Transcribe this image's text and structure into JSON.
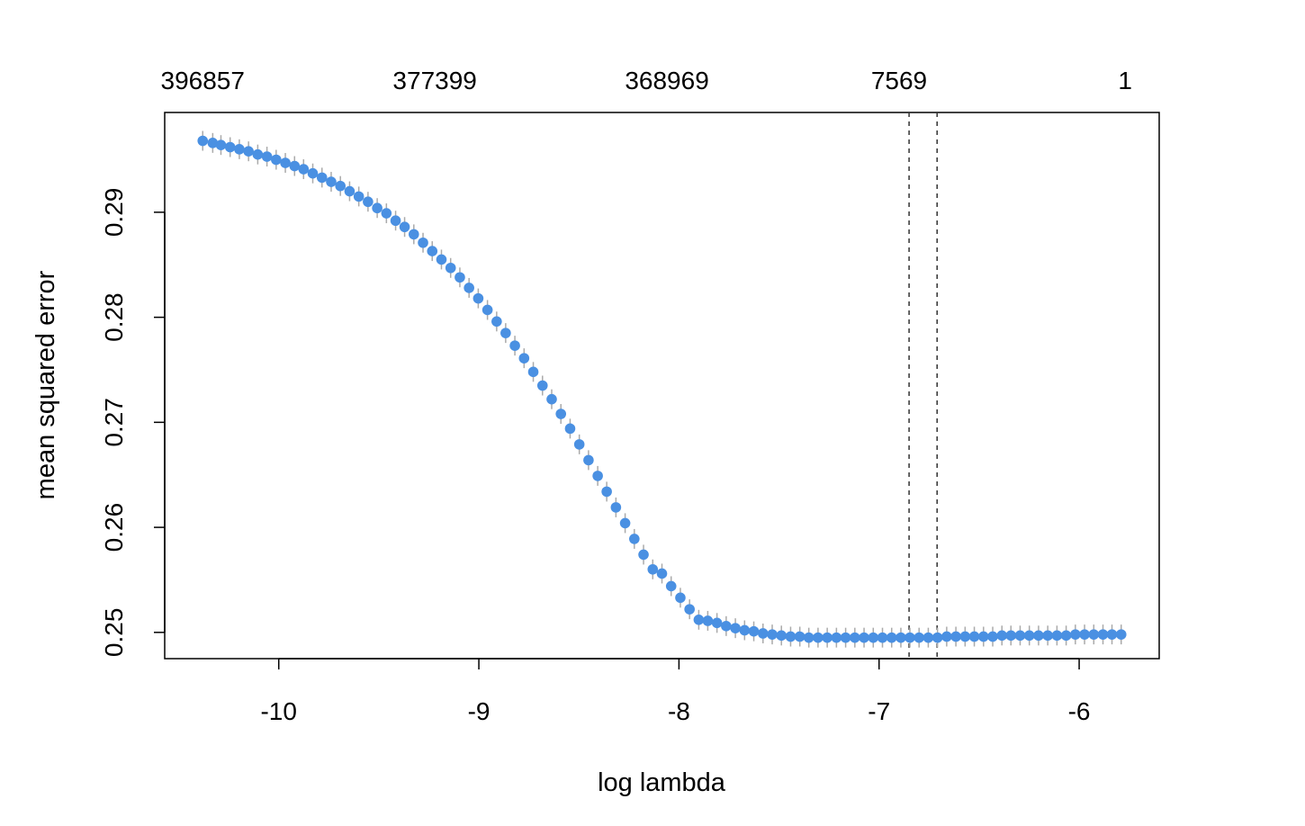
{
  "chart_data": {
    "type": "scatter",
    "title": "",
    "xlabel": "log lambda",
    "ylabel": "mean squared error",
    "xlim": [
      -10.57,
      -5.6
    ],
    "ylim": [
      0.2475,
      0.2995
    ],
    "x_ticks": [
      -10,
      -9,
      -8,
      -7,
      -6
    ],
    "x_tick_labels": [
      "-10",
      "-9",
      "-8",
      "-7",
      "-6"
    ],
    "y_ticks": [
      0.25,
      0.26,
      0.27,
      0.28,
      0.29
    ],
    "y_tick_labels": [
      "0.25",
      "0.26",
      "0.27",
      "0.28",
      "0.29"
    ],
    "top_axis": {
      "x_ticks": [
        -10.38,
        -9.22,
        -8.06,
        -6.9,
        -5.77
      ],
      "labels": [
        "396857",
        "377399",
        "368969",
        "7569",
        "1"
      ]
    },
    "vlines": [
      -6.85,
      -6.71
    ],
    "point_color": "#4a90e2",
    "errorbar_color": "#aaaaaa",
    "series": [
      {
        "x": [
          -10.38,
          -10.33,
          -10.289,
          -10.243,
          -10.197,
          -10.151,
          -10.105,
          -10.059,
          -10.013,
          -9.967,
          -9.921,
          -9.876,
          -9.83,
          -9.784,
          -9.738,
          -9.692,
          -9.646,
          -9.6,
          -9.554,
          -9.508,
          -9.462,
          -9.416,
          -9.371,
          -9.325,
          -9.279,
          -9.233,
          -9.187,
          -9.141,
          -9.095,
          -9.049,
          -9.003,
          -8.957,
          -8.911,
          -8.866,
          -8.82,
          -8.774,
          -8.728,
          -8.682,
          -8.636,
          -8.59,
          -8.544,
          -8.498,
          -8.452,
          -8.406,
          -8.361,
          -8.315,
          -8.269,
          -8.223,
          -8.177,
          -8.131,
          -8.085,
          -8.039,
          -7.993,
          -7.947,
          -7.901,
          -7.856,
          -7.81,
          -7.764,
          -7.718,
          -7.672,
          -7.626,
          -7.58,
          -7.534,
          -7.488,
          -7.442,
          -7.396,
          -7.351,
          -7.305,
          -7.259,
          -7.213,
          -7.167,
          -7.121,
          -7.075,
          -7.029,
          -6.983,
          -6.937,
          -6.891,
          -6.846,
          -6.8,
          -6.754,
          -6.708,
          -6.662,
          -6.616,
          -6.57,
          -6.524,
          -6.478,
          -6.432,
          -6.386,
          -6.341,
          -6.295,
          -6.249,
          -6.203,
          -6.157,
          -6.111,
          -6.065,
          -6.019,
          -5.973,
          -5.927,
          -5.881,
          -5.836,
          -5.79
        ],
        "y": [
          0.2968,
          0.2966,
          0.2964,
          0.2962,
          0.296,
          0.2958,
          0.2955,
          0.2953,
          0.295,
          0.2947,
          0.2944,
          0.2941,
          0.2937,
          0.2933,
          0.2929,
          0.2925,
          0.292,
          0.2915,
          0.291,
          0.2904,
          0.2899,
          0.2892,
          0.2886,
          0.2879,
          0.2871,
          0.2863,
          0.2855,
          0.2847,
          0.2838,
          0.2828,
          0.2818,
          0.2807,
          0.2796,
          0.2785,
          0.2773,
          0.2761,
          0.2748,
          0.2735,
          0.2722,
          0.2708,
          0.2694,
          0.2679,
          0.2664,
          0.2649,
          0.2634,
          0.2619,
          0.2604,
          0.2589,
          0.2574,
          0.256,
          0.2556,
          0.2544,
          0.2533,
          0.2522,
          0.2512,
          0.2511,
          0.2509,
          0.2506,
          0.2504,
          0.2502,
          0.2501,
          0.2499,
          0.2498,
          0.2497,
          0.2496,
          0.2496,
          0.2495,
          0.2495,
          0.2495,
          0.2495,
          0.2495,
          0.2495,
          0.2495,
          0.2495,
          0.2495,
          0.2495,
          0.2495,
          0.2495,
          0.2495,
          0.2495,
          0.2495,
          0.2496,
          0.2496,
          0.2496,
          0.2496,
          0.2496,
          0.2496,
          0.2497,
          0.2497,
          0.2497,
          0.2497,
          0.2497,
          0.2497,
          0.2497,
          0.2497,
          0.2498,
          0.2498,
          0.2498,
          0.2498,
          0.2498,
          0.2498
        ]
      }
    ]
  }
}
